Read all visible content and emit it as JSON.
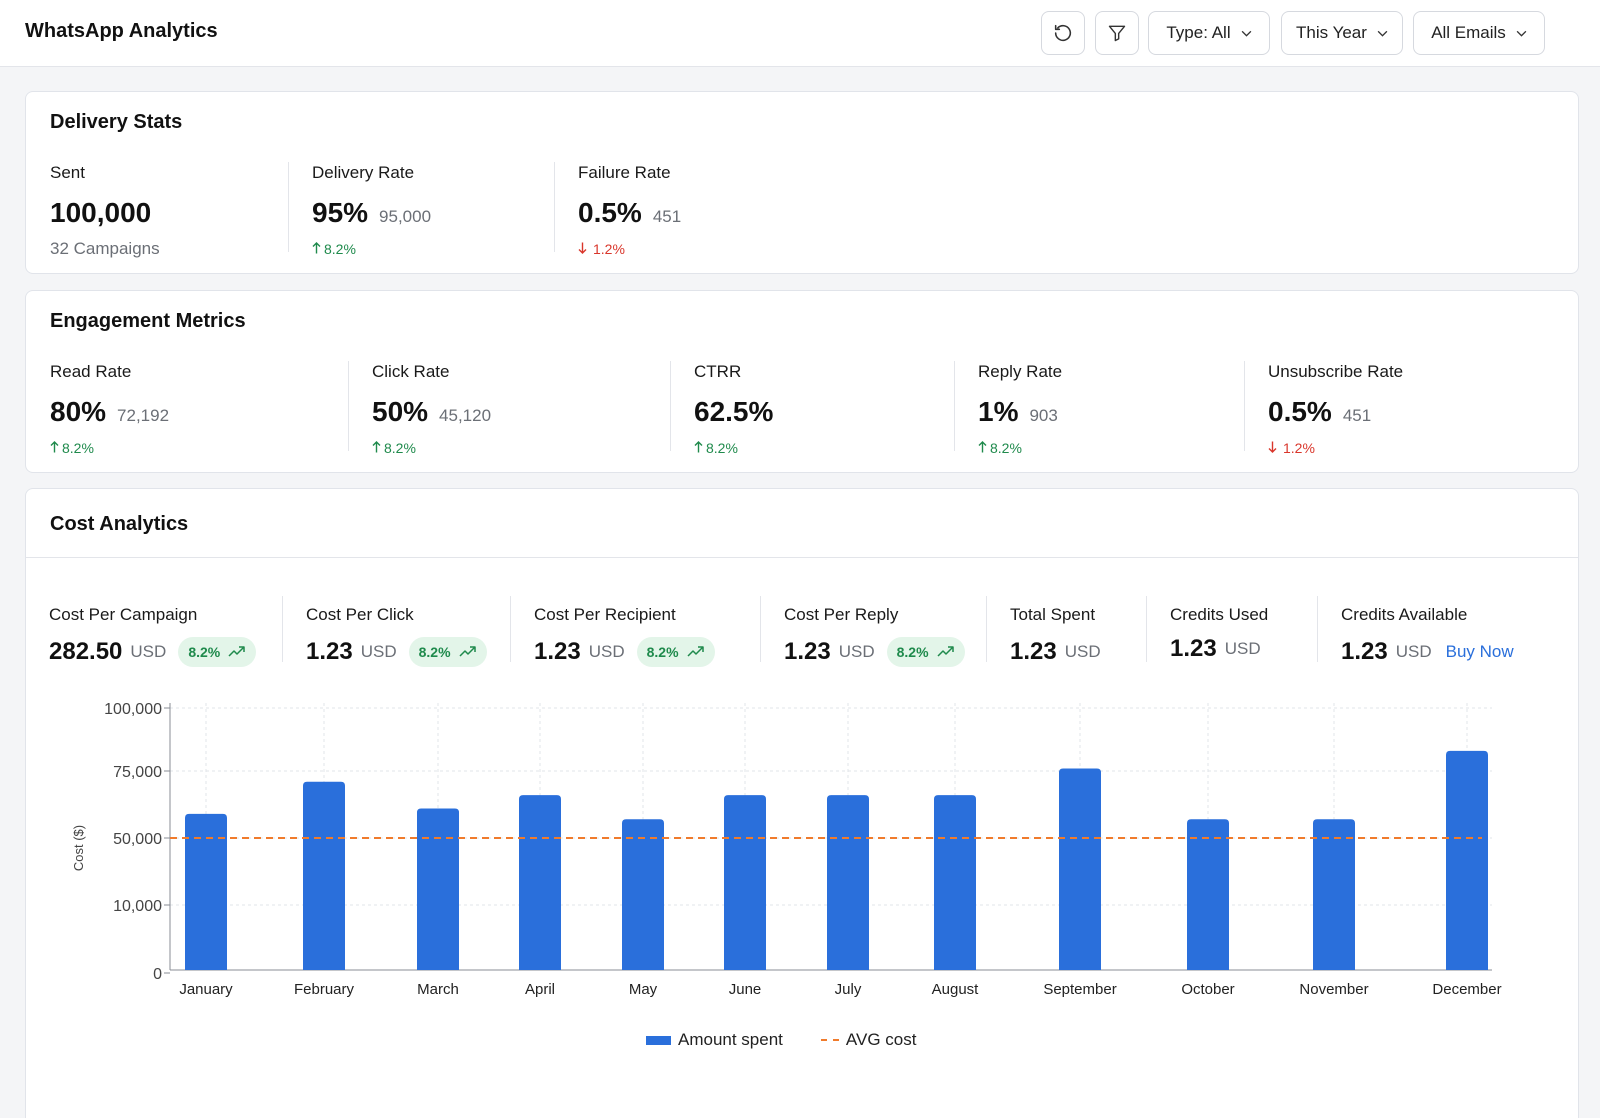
{
  "header": {
    "title": "WhatsApp Analytics",
    "type_filter": "Type: All",
    "period_filter": "This Year",
    "email_filter": "All Emails",
    "icons": [
      "refresh-icon",
      "filter-icon",
      "chevron-down-icon"
    ]
  },
  "delivery": {
    "title": "Delivery Stats",
    "sent": {
      "label": "Sent",
      "value": "100,000",
      "caption": "32 Campaigns"
    },
    "delivery_rate": {
      "label": "Delivery Rate",
      "value": "95%",
      "sub": "95,000",
      "trend": "8.2%",
      "direction": "up"
    },
    "failure_rate": {
      "label": "Failure Rate",
      "value": "0.5%",
      "sub": "451",
      "trend": "1.2%",
      "direction": "down"
    }
  },
  "engagement": {
    "title": "Engagement Metrics",
    "metrics": [
      {
        "label": "Read Rate",
        "value": "80%",
        "sub": "72,192",
        "trend": "8.2%",
        "direction": "up"
      },
      {
        "label": "Click Rate",
        "value": "50%",
        "sub": "45,120",
        "trend": "8.2%",
        "direction": "up"
      },
      {
        "label": "CTRR",
        "value": "62.5%",
        "sub": "",
        "trend": "8.2%",
        "direction": "up"
      },
      {
        "label": "Reply Rate",
        "value": "1%",
        "sub": "903",
        "trend": "8.2%",
        "direction": "up"
      },
      {
        "label": "Unsubscribe Rate",
        "value": "0.5%",
        "sub": "451",
        "trend": "1.2%",
        "direction": "down"
      }
    ]
  },
  "cost": {
    "title": "Cost Analytics",
    "metrics": [
      {
        "label": "Cost Per Campaign",
        "value": "282.50",
        "unit": "USD",
        "badge": "8.2%"
      },
      {
        "label": "Cost Per Click",
        "value": "1.23",
        "unit": "USD",
        "badge": "8.2%"
      },
      {
        "label": "Cost Per Recipient",
        "value": "1.23",
        "unit": "USD",
        "badge": "8.2%"
      },
      {
        "label": "Cost Per Reply",
        "value": "1.23",
        "unit": "USD",
        "badge": "8.2%"
      },
      {
        "label": "Total Spent",
        "value": "1.23",
        "unit": "USD"
      },
      {
        "label": "Credits Used",
        "value": "1.23",
        "unit": "USD"
      },
      {
        "label": "Credits Available",
        "value": "1.23",
        "unit": "USD",
        "link": "Buy Now"
      }
    ]
  },
  "colors": {
    "up": "#1f8a4c",
    "down": "#d9362b",
    "bar": "#2a6fdb",
    "avg": "#f07b2c",
    "link": "#2a6fdb"
  },
  "chart_data": {
    "type": "bar",
    "categories": [
      "January",
      "February",
      "March",
      "April",
      "May",
      "June",
      "July",
      "August",
      "September",
      "October",
      "November",
      "December"
    ],
    "yticks": [
      "0",
      "10,000",
      "50,000",
      "75,000",
      "100,000"
    ],
    "ylabel": "Cost ($)",
    "series": [
      {
        "name": "Amount spent",
        "values": [
          59000,
          71000,
          61000,
          66000,
          57000,
          66000,
          66000,
          66000,
          76000,
          57000,
          57000,
          83000
        ]
      },
      {
        "name": "AVG cost",
        "type": "line",
        "value": 50000
      }
    ],
    "grid": true,
    "legend": "bottom-center"
  }
}
